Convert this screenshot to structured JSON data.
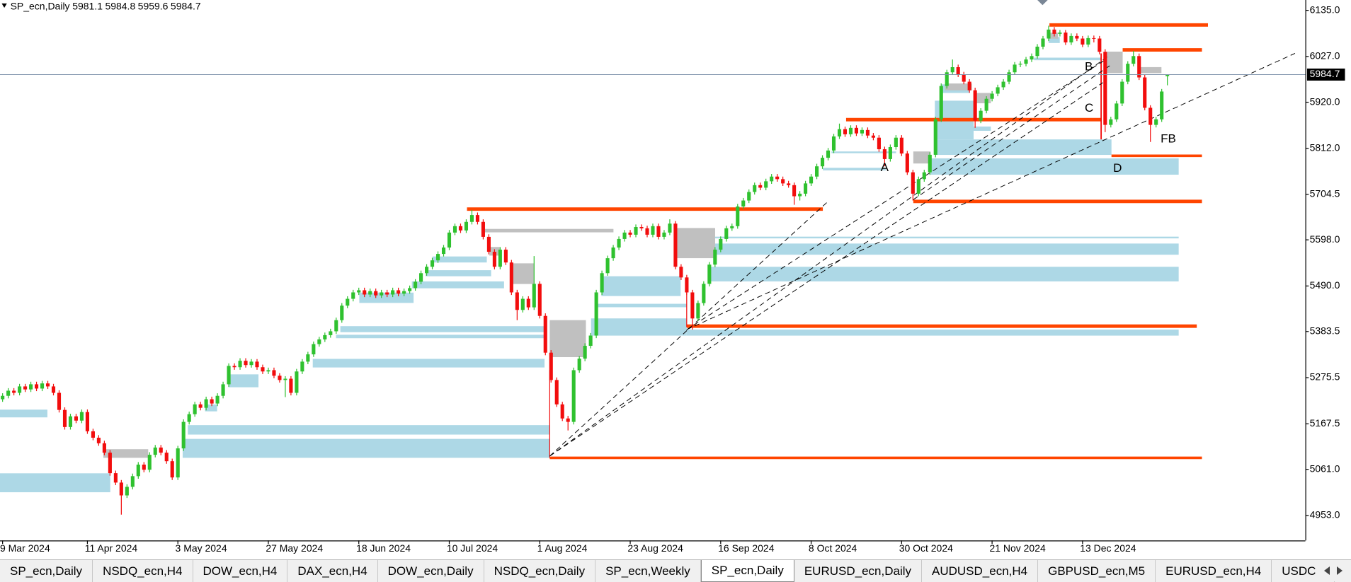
{
  "chart_data": {
    "type": "candlestick",
    "title": "SP_ecn,Daily",
    "ohlc": [
      [
        5225,
        5239,
        5219,
        5233
      ],
      [
        5233,
        5251,
        5227,
        5245
      ],
      [
        5245,
        5251,
        5234,
        5240
      ],
      [
        5240,
        5261,
        5234,
        5255
      ],
      [
        5255,
        5261,
        5242,
        5248
      ],
      [
        5248,
        5266,
        5242,
        5260
      ],
      [
        5260,
        5266,
        5244,
        5250
      ],
      [
        5250,
        5268,
        5244,
        5262
      ],
      [
        5262,
        5268,
        5249,
        5255
      ],
      [
        5255,
        5261,
        5234,
        5240
      ],
      [
        5240,
        5246,
        5194,
        5200
      ],
      [
        5200,
        5206,
        5154,
        5160
      ],
      [
        5160,
        5191,
        5154,
        5185
      ],
      [
        5185,
        5191,
        5169,
        5175
      ],
      [
        5175,
        5201,
        5169,
        5195
      ],
      [
        5195,
        5201,
        5144,
        5150
      ],
      [
        5150,
        5156,
        5129,
        5135
      ],
      [
        5135,
        5141,
        5116,
        5122
      ],
      [
        5122,
        5128,
        5094,
        5100
      ],
      [
        5100,
        5106,
        5046,
        5052
      ],
      [
        5052,
        5058,
        5024,
        5030
      ],
      [
        5030,
        5036,
        4955,
        5000
      ],
      [
        5000,
        5026,
        4994,
        5020
      ],
      [
        5020,
        5051,
        5014,
        5045
      ],
      [
        5045,
        5078,
        5039,
        5072
      ],
      [
        5072,
        5078,
        5054,
        5060
      ],
      [
        5060,
        5101,
        5054,
        5095
      ],
      [
        5095,
        5118,
        5089,
        5112
      ],
      [
        5112,
        5118,
        5094,
        5100
      ],
      [
        5100,
        5106,
        5074,
        5080
      ],
      [
        5080,
        5086,
        5036,
        5042
      ],
      [
        5042,
        5116,
        5036,
        5110
      ],
      [
        5110,
        5178,
        5104,
        5172
      ],
      [
        5172,
        5196,
        5166,
        5190
      ],
      [
        5190,
        5219,
        5184,
        5213
      ],
      [
        5213,
        5219,
        5199,
        5205
      ],
      [
        5205,
        5231,
        5199,
        5225
      ],
      [
        5225,
        5231,
        5209,
        5215
      ],
      [
        5215,
        5239,
        5209,
        5233
      ],
      [
        5233,
        5266,
        5227,
        5260
      ],
      [
        5260,
        5309,
        5254,
        5303
      ],
      [
        5303,
        5309,
        5294,
        5300
      ],
      [
        5300,
        5321,
        5294,
        5315
      ],
      [
        5315,
        5321,
        5299,
        5305
      ],
      [
        5305,
        5319,
        5299,
        5313
      ],
      [
        5313,
        5319,
        5294,
        5300
      ],
      [
        5300,
        5306,
        5284,
        5290
      ],
      [
        5290,
        5299,
        5284,
        5293
      ],
      [
        5293,
        5299,
        5274,
        5280
      ],
      [
        5280,
        5286,
        5264,
        5270
      ],
      [
        5270,
        5279,
        5230,
        5273
      ],
      [
        5273,
        5279,
        5234,
        5240
      ],
      [
        5240,
        5296,
        5234,
        5290
      ],
      [
        5290,
        5319,
        5284,
        5313
      ],
      [
        5313,
        5336,
        5307,
        5330
      ],
      [
        5330,
        5360,
        5324,
        5354
      ],
      [
        5354,
        5371,
        5348,
        5365
      ],
      [
        5365,
        5381,
        5359,
        5375
      ],
      [
        5375,
        5390,
        5369,
        5384
      ],
      [
        5384,
        5416,
        5378,
        5410
      ],
      [
        5410,
        5450,
        5404,
        5444
      ],
      [
        5444,
        5466,
        5438,
        5460
      ],
      [
        5460,
        5481,
        5454,
        5475
      ],
      [
        5475,
        5486,
        5469,
        5480
      ],
      [
        5480,
        5486,
        5464,
        5470
      ],
      [
        5470,
        5484,
        5464,
        5478
      ],
      [
        5478,
        5484,
        5462,
        5468
      ],
      [
        5468,
        5481,
        5462,
        5475
      ],
      [
        5475,
        5481,
        5464,
        5470
      ],
      [
        5470,
        5486,
        5464,
        5480
      ],
      [
        5480,
        5486,
        5466,
        5472
      ],
      [
        5472,
        5484,
        5466,
        5478
      ],
      [
        5478,
        5491,
        5472,
        5485
      ],
      [
        5485,
        5506,
        5479,
        5500
      ],
      [
        5500,
        5526,
        5494,
        5520
      ],
      [
        5520,
        5541,
        5514,
        5535
      ],
      [
        5535,
        5556,
        5529,
        5550
      ],
      [
        5550,
        5571,
        5544,
        5565
      ],
      [
        5565,
        5586,
        5559,
        5580
      ],
      [
        5580,
        5621,
        5574,
        5615
      ],
      [
        5615,
        5636,
        5609,
        5630
      ],
      [
        5630,
        5636,
        5614,
        5620
      ],
      [
        5620,
        5646,
        5614,
        5640
      ],
      [
        5640,
        5668,
        5634,
        5656
      ],
      [
        5656,
        5662,
        5634,
        5640
      ],
      [
        5640,
        5646,
        5599,
        5605
      ],
      [
        5605,
        5611,
        5564,
        5570
      ],
      [
        5570,
        5576,
        5529,
        5535
      ],
      [
        5535,
        5581,
        5529,
        5575
      ],
      [
        5575,
        5581,
        5539,
        5545
      ],
      [
        5545,
        5551,
        5469,
        5475
      ],
      [
        5475,
        5481,
        5410,
        5434
      ],
      [
        5434,
        5466,
        5428,
        5460
      ],
      [
        5460,
        5466,
        5434,
        5440
      ],
      [
        5440,
        5560,
        5434,
        5495
      ],
      [
        5495,
        5501,
        5414,
        5420
      ],
      [
        5420,
        5426,
        5328,
        5334
      ],
      [
        5334,
        5340,
        5264,
        5270
      ],
      [
        5270,
        5276,
        5207,
        5213
      ],
      [
        5213,
        5219,
        5174,
        5180
      ],
      [
        5180,
        5186,
        5152,
        5172
      ],
      [
        5172,
        5299,
        5166,
        5293
      ],
      [
        5293,
        5326,
        5287,
        5320
      ],
      [
        5320,
        5356,
        5314,
        5350
      ],
      [
        5350,
        5380,
        5344,
        5374
      ],
      [
        5374,
        5481,
        5368,
        5475
      ],
      [
        5475,
        5526,
        5469,
        5520
      ],
      [
        5520,
        5561,
        5514,
        5555
      ],
      [
        5555,
        5586,
        5549,
        5580
      ],
      [
        5580,
        5606,
        5574,
        5600
      ],
      [
        5600,
        5621,
        5594,
        5615
      ],
      [
        5615,
        5621,
        5604,
        5610
      ],
      [
        5610,
        5634,
        5604,
        5628
      ],
      [
        5628,
        5634,
        5619,
        5625
      ],
      [
        5625,
        5631,
        5604,
        5610
      ],
      [
        5610,
        5636,
        5604,
        5630
      ],
      [
        5630,
        5636,
        5599,
        5605
      ],
      [
        5605,
        5621,
        5599,
        5615
      ],
      [
        5615,
        5646,
        5609,
        5636
      ],
      [
        5636,
        5642,
        5529,
        5535
      ],
      [
        5535,
        5541,
        5504,
        5510
      ],
      [
        5510,
        5516,
        5469,
        5475
      ],
      [
        5475,
        5481,
        5388,
        5414
      ],
      [
        5414,
        5456,
        5408,
        5450
      ],
      [
        5450,
        5501,
        5444,
        5495
      ],
      [
        5495,
        5546,
        5489,
        5540
      ],
      [
        5540,
        5581,
        5534,
        5575
      ],
      [
        5575,
        5606,
        5569,
        5600
      ],
      [
        5600,
        5631,
        5594,
        5625
      ],
      [
        5625,
        5636,
        5619,
        5630
      ],
      [
        5630,
        5682,
        5624,
        5676
      ],
      [
        5676,
        5696,
        5670,
        5690
      ],
      [
        5690,
        5716,
        5684,
        5710
      ],
      [
        5710,
        5732,
        5704,
        5726
      ],
      [
        5726,
        5732,
        5714,
        5720
      ],
      [
        5720,
        5741,
        5714,
        5735
      ],
      [
        5735,
        5752,
        5729,
        5746
      ],
      [
        5746,
        5752,
        5734,
        5740
      ],
      [
        5740,
        5746,
        5724,
        5730
      ],
      [
        5730,
        5736,
        5720,
        5726
      ],
      [
        5726,
        5732,
        5680,
        5700
      ],
      [
        5700,
        5712,
        5690,
        5706
      ],
      [
        5706,
        5736,
        5700,
        5730
      ],
      [
        5730,
        5752,
        5724,
        5746
      ],
      [
        5746,
        5776,
        5740,
        5770
      ],
      [
        5770,
        5796,
        5764,
        5790
      ],
      [
        5790,
        5813,
        5784,
        5807
      ],
      [
        5807,
        5846,
        5801,
        5840
      ],
      [
        5840,
        5870,
        5834,
        5857
      ],
      [
        5857,
        5863,
        5839,
        5845
      ],
      [
        5845,
        5866,
        5839,
        5860
      ],
      [
        5860,
        5866,
        5841,
        5847
      ],
      [
        5847,
        5861,
        5841,
        5855
      ],
      [
        5855,
        5861,
        5836,
        5842
      ],
      [
        5842,
        5848,
        5831,
        5837
      ],
      [
        5837,
        5843,
        5804,
        5810
      ],
      [
        5810,
        5816,
        5770,
        5787
      ],
      [
        5787,
        5821,
        5781,
        5815
      ],
      [
        5815,
        5843,
        5809,
        5837
      ],
      [
        5837,
        5843,
        5794,
        5800
      ],
      [
        5800,
        5806,
        5750,
        5756
      ],
      [
        5756,
        5762,
        5690,
        5706
      ],
      [
        5706,
        5746,
        5700,
        5740
      ],
      [
        5740,
        5762,
        5734,
        5756
      ],
      [
        5756,
        5803,
        5750,
        5797
      ],
      [
        5797,
        5886,
        5791,
        5880
      ],
      [
        5880,
        5964,
        5874,
        5958
      ],
      [
        5958,
        5996,
        5952,
        5990
      ],
      [
        5990,
        6020,
        5984,
        6002
      ],
      [
        6002,
        6008,
        5979,
        5985
      ],
      [
        5985,
        5991,
        5962,
        5968
      ],
      [
        5968,
        5974,
        5942,
        5948
      ],
      [
        5948,
        5954,
        5860,
        5877
      ],
      [
        5877,
        5906,
        5871,
        5900
      ],
      [
        5900,
        5934,
        5894,
        5928
      ],
      [
        5928,
        5946,
        5922,
        5940
      ],
      [
        5940,
        5961,
        5934,
        5955
      ],
      [
        5955,
        5974,
        5949,
        5968
      ],
      [
        5968,
        5996,
        5962,
        5990
      ],
      [
        5990,
        6014,
        5984,
        6008
      ],
      [
        6008,
        6016,
        6002,
        6010
      ],
      [
        6010,
        6026,
        6004,
        6020
      ],
      [
        6020,
        6034,
        6014,
        6028
      ],
      [
        6028,
        6056,
        6022,
        6050
      ],
      [
        6050,
        6075,
        6044,
        6069
      ],
      [
        6069,
        6099,
        6063,
        6090
      ],
      [
        6090,
        6096,
        6074,
        6080
      ],
      [
        6080,
        6089,
        6074,
        6083
      ],
      [
        6083,
        6089,
        6054,
        6060
      ],
      [
        6060,
        6081,
        6054,
        6075
      ],
      [
        6075,
        6081,
        6063,
        6069
      ],
      [
        6069,
        6075,
        6049,
        6055
      ],
      [
        6055,
        6076,
        6049,
        6070
      ],
      [
        6070,
        6076,
        6060,
        6069
      ],
      [
        6069,
        6075,
        6032,
        6038
      ],
      [
        6038,
        6044,
        5850,
        5867
      ],
      [
        5867,
        5886,
        5861,
        5880
      ],
      [
        5880,
        5923,
        5874,
        5917
      ],
      [
        5917,
        5974,
        5911,
        5968
      ],
      [
        5968,
        6016,
        5962,
        6010
      ],
      [
        6010,
        6040,
        6004,
        6028
      ],
      [
        6028,
        6034,
        5972,
        5978
      ],
      [
        5978,
        5984,
        5901,
        5907
      ],
      [
        5907,
        5913,
        5827,
        5867
      ],
      [
        5867,
        5886,
        5861,
        5880
      ],
      [
        5880,
        5951,
        5874,
        5945
      ],
      [
        5981.1,
        5984.8,
        5959.6,
        5984.7
      ]
    ],
    "categories": [
      "9 Mar 2024",
      null,
      null,
      null,
      null,
      null,
      null,
      null,
      null,
      null,
      null,
      null,
      null,
      null,
      null,
      "11 Apr 2024",
      null,
      null,
      null,
      null,
      null,
      null,
      null,
      null,
      null,
      null,
      null,
      null,
      null,
      null,
      null,
      "3 May 2024",
      null,
      null,
      null,
      null,
      null,
      null,
      null,
      null,
      null,
      null,
      null,
      null,
      null,
      null,
      null,
      "27 May 2024",
      null,
      null,
      null,
      null,
      null,
      null,
      null,
      null,
      null,
      null,
      null,
      null,
      null,
      null,
      null,
      "18 Jun 2024",
      null,
      null,
      null,
      null,
      null,
      null,
      null,
      null,
      null,
      null,
      null,
      null,
      null,
      null,
      null,
      "10 Jul 2024",
      null,
      null,
      null,
      null,
      null,
      null,
      null,
      null,
      null,
      null,
      null,
      null,
      null,
      null,
      null,
      "1 Aug 2024",
      null,
      null,
      null,
      null,
      null,
      null,
      null,
      null,
      null,
      null,
      null,
      null,
      null,
      null,
      null,
      "23 Aug 2024",
      null,
      null,
      null,
      null,
      null,
      null,
      null,
      null,
      null,
      null,
      null,
      null,
      null,
      null,
      null,
      "16 Sep 2024",
      null,
      null,
      null,
      null,
      null,
      null,
      null,
      null,
      null,
      null,
      null,
      null,
      null,
      null,
      null,
      "8 Oct 2024",
      null,
      null,
      null,
      null,
      null,
      null,
      null,
      null,
      null,
      null,
      null,
      null,
      null,
      null,
      null,
      "30 Oct 2024",
      null,
      null,
      null,
      null,
      null,
      null,
      null,
      null,
      null,
      null,
      null,
      null,
      null,
      null,
      null,
      "21 Nov 2024",
      null,
      null,
      null,
      null,
      null,
      null,
      null,
      null,
      null,
      null,
      null,
      null,
      null,
      null,
      null,
      "13 Dec 2024",
      null,
      null,
      null,
      null,
      null,
      null,
      null,
      null,
      null,
      null,
      null,
      null,
      null,
      null,
      null
    ],
    "ylim": [
      4894.6,
      6159.2
    ],
    "yticks": [
      {
        "value": 6135,
        "label": "6135.0"
      },
      {
        "value": 6027,
        "label": "6027.0"
      },
      {
        "value": 5920,
        "label": "5920.0"
      },
      {
        "value": 5812,
        "label": "5812.0"
      },
      {
        "value": 5704.5,
        "label": "5704.5"
      },
      {
        "value": 5598,
        "label": "5598.0"
      },
      {
        "value": 5490,
        "label": "5490.0"
      },
      {
        "value": 5383.5,
        "label": "5383.5"
      },
      {
        "value": 5275.5,
        "label": "5275.5"
      },
      {
        "value": 5167.5,
        "label": "5167.5"
      },
      {
        "value": 5061,
        "label": "5061.0"
      },
      {
        "value": 4953,
        "label": "4953.0"
      }
    ],
    "colors": {
      "up": "#2fc12f",
      "down": "#f20d0d"
    },
    "annotations": [
      "A",
      "B",
      "C",
      "D",
      "FB"
    ]
  },
  "tabs": [
    "SP_ecn,Daily",
    "NSDQ_ecn,H4",
    "DOW_ecn,H4",
    "DAX_ecn,H4",
    "DOW_ecn,Daily",
    "NSDQ_ecn,Daily",
    "SP_ecn,Weekly",
    "SP_ecn,Daily",
    "EURUSD_ecn,Daily",
    "AUDUSD_ecn,H4",
    "GBPUSD_ecn,M5",
    "EURUSD_ecn,H4",
    "USDCA"
  ],
  "active_tab": 7
}
